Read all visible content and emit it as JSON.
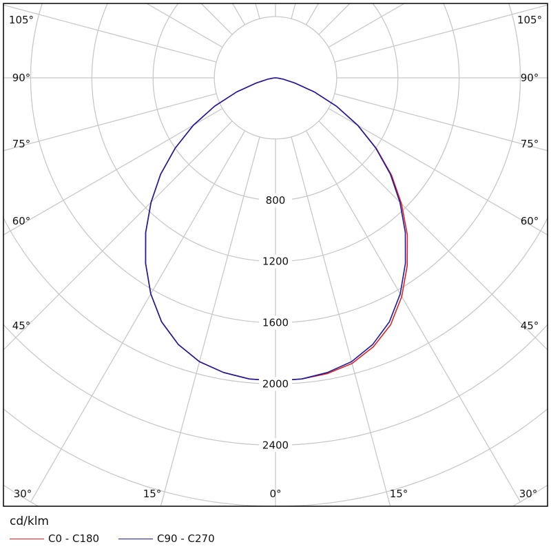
{
  "chart_data": {
    "type": "line",
    "subtype": "polar luminous intensity distribution",
    "unit_label": "cd/klm",
    "radial_ticks": [
      "800",
      "1200",
      "1600",
      "2000",
      "2400"
    ],
    "radial_tick_values": [
      800,
      1200,
      1600,
      2000,
      2400
    ],
    "radial_gridline_step": 400,
    "angle_gridline_step_deg": 15,
    "angle_labels_bottom": [
      "30°",
      "15°",
      "0°",
      "15°",
      "30°"
    ],
    "angle_labels_side": [
      "45°",
      "60°",
      "75°",
      "90°",
      "105°"
    ],
    "grid": true,
    "legend_position": "bottom-left",
    "series": [
      {
        "name": "C0 - C180",
        "color": "#e02020",
        "angles": [
          0,
          5,
          10,
          15,
          20,
          25,
          30,
          35,
          40,
          45,
          50,
          55,
          60,
          65,
          70,
          75,
          80,
          85,
          90
        ],
        "left": [
          1980,
          1975,
          1955,
          1920,
          1855,
          1760,
          1630,
          1480,
          1320,
          1150,
          980,
          800,
          620,
          440,
          270,
          130,
          50,
          14,
          0
        ],
        "right": [
          1980,
          1975,
          1962,
          1932,
          1870,
          1780,
          1650,
          1500,
          1340,
          1165,
          990,
          805,
          622,
          442,
          272,
          131,
          50,
          14,
          0
        ]
      },
      {
        "name": "C90 - C270",
        "color": "#1a1aa0",
        "angles": [
          0,
          5,
          10,
          15,
          20,
          25,
          30,
          35,
          40,
          45,
          50,
          55,
          60,
          65,
          70,
          75,
          80,
          85,
          90
        ],
        "left": [
          1980,
          1975,
          1955,
          1920,
          1855,
          1760,
          1630,
          1480,
          1320,
          1150,
          980,
          800,
          620,
          440,
          270,
          130,
          50,
          14,
          0
        ],
        "right": [
          1980,
          1975,
          1955,
          1920,
          1855,
          1760,
          1630,
          1480,
          1320,
          1150,
          980,
          800,
          620,
          440,
          270,
          130,
          50,
          14,
          0
        ]
      }
    ],
    "colors": {
      "grid": "#c8c8c8",
      "frame": "#000000",
      "text": "#111111"
    }
  }
}
